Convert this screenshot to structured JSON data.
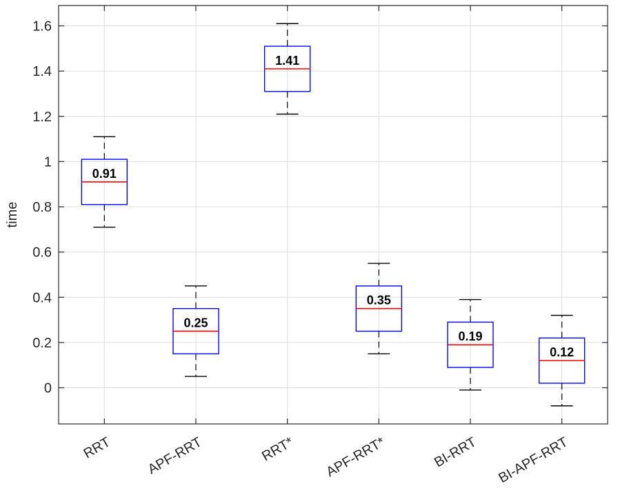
{
  "chart_data": {
    "type": "box",
    "ylabel": "time",
    "xlabel": "",
    "title": "",
    "ylim": [
      -0.16,
      1.69
    ],
    "yticks": [
      {
        "value": 0,
        "label": "0"
      },
      {
        "value": 0.2,
        "label": "0.2"
      },
      {
        "value": 0.4,
        "label": "0.4"
      },
      {
        "value": 0.6,
        "label": "0.6"
      },
      {
        "value": 0.8,
        "label": "0.8"
      },
      {
        "value": 1.0,
        "label": "1"
      },
      {
        "value": 1.2,
        "label": "1.2"
      },
      {
        "value": 1.4,
        "label": "1.4"
      },
      {
        "value": 1.6,
        "label": "1.6"
      }
    ],
    "grid": true,
    "categories": [
      "RRT",
      "APF-RRT",
      "RRT*",
      "APF-RRT*",
      "BI-RRT",
      "BI-APF-RRT"
    ],
    "boxes": [
      {
        "category": "RRT",
        "whisker_low": 0.71,
        "q1": 0.81,
        "median": 0.91,
        "q3": 1.01,
        "whisker_high": 1.11,
        "label": "0.91"
      },
      {
        "category": "APF-RRT",
        "whisker_low": 0.05,
        "q1": 0.15,
        "median": 0.25,
        "q3": 0.35,
        "whisker_high": 0.45,
        "label": "0.25"
      },
      {
        "category": "RRT*",
        "whisker_low": 1.21,
        "q1": 1.31,
        "median": 1.41,
        "q3": 1.51,
        "whisker_high": 1.61,
        "label": "1.41"
      },
      {
        "category": "APF-RRT*",
        "whisker_low": 0.15,
        "q1": 0.25,
        "median": 0.35,
        "q3": 0.45,
        "whisker_high": 0.55,
        "label": "0.35"
      },
      {
        "category": "BI-RRT",
        "whisker_low": -0.01,
        "q1": 0.09,
        "median": 0.19,
        "q3": 0.29,
        "whisker_high": 0.39,
        "label": "0.19"
      },
      {
        "category": "BI-APF-RRT",
        "whisker_low": -0.08,
        "q1": 0.02,
        "median": 0.12,
        "q3": 0.22,
        "whisker_high": 0.32,
        "label": "0.12"
      }
    ],
    "colors": {
      "box": "#0000ff",
      "median": "#ff0000",
      "whisker": "#000000",
      "grid": "#dcdcdc",
      "axis": "#262626"
    }
  }
}
